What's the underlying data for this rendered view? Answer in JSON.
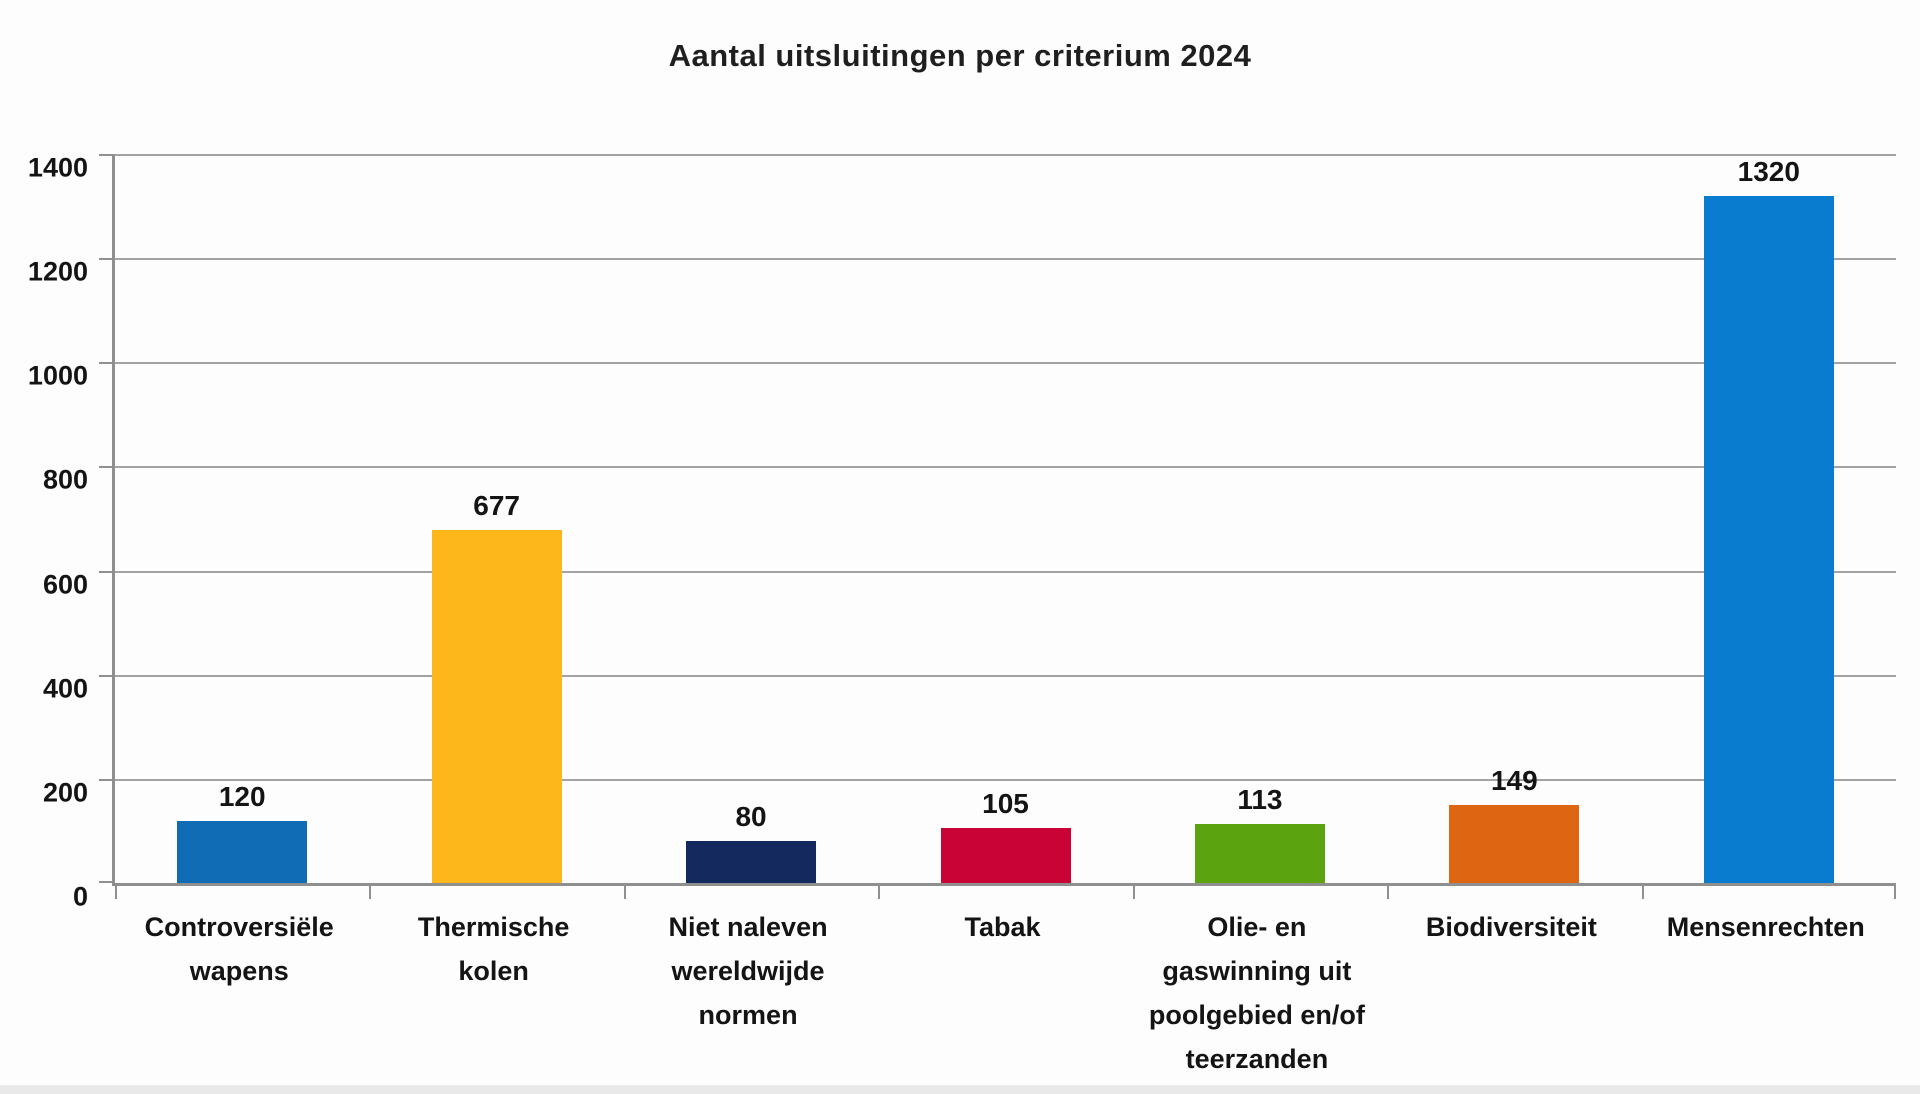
{
  "title": "Aantal uitsluitingen per criterium 2024",
  "chart_data": {
    "type": "bar",
    "title": "Aantal uitsluitingen per criterium 2024",
    "categories": [
      "Controversiële wapens",
      "Thermische kolen",
      "Niet naleven wereldwijde normen",
      "Tabak",
      "Olie- en gaswinning uit poolgebied en/of teerzanden",
      "Biodiversiteit",
      "Mensenrechten"
    ],
    "category_label_lines": [
      [
        "Controversiële",
        "wapens"
      ],
      [
        "Thermische",
        "kolen"
      ],
      [
        "Niet naleven",
        "wereldwijde",
        "normen"
      ],
      [
        "Tabak"
      ],
      [
        "Olie- en",
        "gaswinning uit",
        "poolgebied en/of",
        "teerzanden"
      ],
      [
        "Biodiversiteit"
      ],
      [
        "Mensenrechten"
      ]
    ],
    "values": [
      120,
      677,
      80,
      105,
      113,
      149,
      1320
    ],
    "value_labels": [
      "120",
      "677",
      "80",
      "105",
      "113",
      "149",
      "1320"
    ],
    "bar_colors": [
      "#0f6cb5",
      "#fdb71b",
      "#14295e",
      "#c90335",
      "#5ca40f",
      "#de6512",
      "#0a7cd0"
    ],
    "y_ticks": [
      "0",
      "200",
      "400",
      "600",
      "800",
      "1000",
      "1200",
      "1400"
    ],
    "y_tick_values": [
      0,
      200,
      400,
      600,
      800,
      1000,
      1200,
      1400
    ],
    "ylim": [
      0,
      1400
    ],
    "xlabel": "",
    "ylabel": "",
    "grid": "horizontal",
    "legend": "none"
  },
  "colors": {
    "background": "#fdfdfd",
    "gridline": "#a3a3a3",
    "axis": "#8f8f8f",
    "text": "#141414",
    "bottom_strip": "#e9e9e9"
  }
}
